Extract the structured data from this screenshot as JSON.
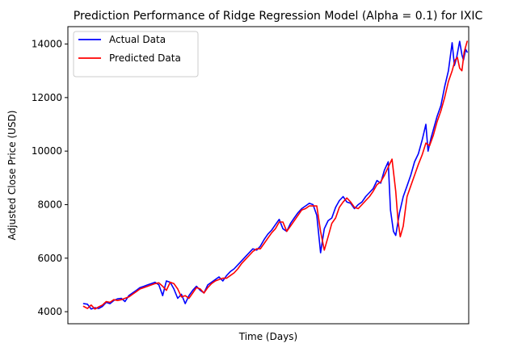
{
  "chart_data": {
    "type": "line",
    "title": "Prediction Performance of Ridge Regression Model (Alpha = 0.1) for IXIC",
    "xlabel": "Time (Days)",
    "ylabel": "Adjusted Close Price (USD)",
    "ylim": [
      3550,
      14650
    ],
    "yticks": [
      4000,
      6000,
      8000,
      10000,
      12000,
      14000
    ],
    "x_ticks_visible": false,
    "grid": false,
    "legend_position": "top-left",
    "xlim": [
      -21,
      512
    ],
    "series": [
      {
        "name": "Actual Data",
        "color": "#0000ff",
        "points": [
          [
            0,
            4300
          ],
          [
            5,
            4280
          ],
          [
            10,
            4100
          ],
          [
            15,
            4150
          ],
          [
            20,
            4120
          ],
          [
            25,
            4200
          ],
          [
            30,
            4350
          ],
          [
            35,
            4300
          ],
          [
            40,
            4420
          ],
          [
            45,
            4480
          ],
          [
            50,
            4500
          ],
          [
            55,
            4380
          ],
          [
            60,
            4600
          ],
          [
            65,
            4700
          ],
          [
            70,
            4800
          ],
          [
            75,
            4900
          ],
          [
            80,
            4950
          ],
          [
            85,
            5000
          ],
          [
            90,
            5050
          ],
          [
            95,
            5100
          ],
          [
            100,
            5000
          ],
          [
            105,
            4600
          ],
          [
            110,
            5150
          ],
          [
            115,
            5100
          ],
          [
            120,
            4850
          ],
          [
            125,
            4500
          ],
          [
            130,
            4650
          ],
          [
            135,
            4300
          ],
          [
            140,
            4600
          ],
          [
            145,
            4800
          ],
          [
            150,
            4950
          ],
          [
            155,
            4800
          ],
          [
            160,
            4700
          ],
          [
            165,
            5000
          ],
          [
            170,
            5100
          ],
          [
            175,
            5200
          ],
          [
            180,
            5300
          ],
          [
            185,
            5150
          ],
          [
            190,
            5350
          ],
          [
            195,
            5500
          ],
          [
            200,
            5600
          ],
          [
            205,
            5750
          ],
          [
            210,
            5900
          ],
          [
            215,
            6050
          ],
          [
            220,
            6200
          ],
          [
            225,
            6350
          ],
          [
            230,
            6300
          ],
          [
            235,
            6450
          ],
          [
            240,
            6700
          ],
          [
            245,
            6900
          ],
          [
            250,
            7050
          ],
          [
            255,
            7250
          ],
          [
            260,
            7450
          ],
          [
            265,
            7100
          ],
          [
            270,
            7000
          ],
          [
            275,
            7300
          ],
          [
            280,
            7500
          ],
          [
            285,
            7700
          ],
          [
            290,
            7850
          ],
          [
            295,
            7950
          ],
          [
            300,
            8050
          ],
          [
            305,
            8000
          ],
          [
            310,
            7600
          ],
          [
            315,
            6200
          ],
          [
            320,
            7100
          ],
          [
            325,
            7400
          ],
          [
            330,
            7500
          ],
          [
            335,
            7900
          ],
          [
            340,
            8150
          ],
          [
            345,
            8300
          ],
          [
            350,
            8100
          ],
          [
            355,
            8050
          ],
          [
            360,
            7850
          ],
          [
            365,
            8000
          ],
          [
            370,
            8100
          ],
          [
            375,
            8300
          ],
          [
            380,
            8450
          ],
          [
            385,
            8600
          ],
          [
            390,
            8900
          ],
          [
            395,
            8800
          ],
          [
            400,
            9300
          ],
          [
            405,
            9600
          ],
          [
            408,
            7800
          ],
          [
            412,
            7000
          ],
          [
            415,
            6850
          ],
          [
            420,
            7700
          ],
          [
            425,
            8300
          ],
          [
            430,
            8700
          ],
          [
            435,
            9100
          ],
          [
            440,
            9600
          ],
          [
            445,
            9900
          ],
          [
            450,
            10400
          ],
          [
            455,
            11000
          ],
          [
            458,
            10000
          ],
          [
            462,
            10500
          ],
          [
            465,
            10800
          ],
          [
            470,
            11300
          ],
          [
            475,
            11700
          ],
          [
            480,
            12400
          ],
          [
            485,
            13000
          ],
          [
            490,
            14050
          ],
          [
            493,
            13200
          ],
          [
            496,
            13500
          ],
          [
            500,
            14100
          ],
          [
            503,
            13600
          ],
          [
            505,
            13400
          ],
          [
            508,
            13800
          ],
          [
            510,
            13700
          ]
        ]
      },
      {
        "name": "Predicted Data",
        "color": "#ff0000",
        "points": [
          [
            0,
            4200
          ],
          [
            5,
            4120
          ],
          [
            10,
            4250
          ],
          [
            15,
            4100
          ],
          [
            20,
            4180
          ],
          [
            25,
            4250
          ],
          [
            30,
            4380
          ],
          [
            35,
            4350
          ],
          [
            40,
            4450
          ],
          [
            45,
            4420
          ],
          [
            50,
            4450
          ],
          [
            55,
            4500
          ],
          [
            60,
            4550
          ],
          [
            65,
            4650
          ],
          [
            70,
            4750
          ],
          [
            75,
            4850
          ],
          [
            80,
            4900
          ],
          [
            85,
            4950
          ],
          [
            90,
            5000
          ],
          [
            95,
            5050
          ],
          [
            100,
            5080
          ],
          [
            105,
            4950
          ],
          [
            110,
            4800
          ],
          [
            115,
            5100
          ],
          [
            120,
            5050
          ],
          [
            125,
            4850
          ],
          [
            130,
            4550
          ],
          [
            135,
            4600
          ],
          [
            140,
            4500
          ],
          [
            145,
            4700
          ],
          [
            150,
            4900
          ],
          [
            155,
            4850
          ],
          [
            160,
            4700
          ],
          [
            165,
            4900
          ],
          [
            170,
            5050
          ],
          [
            175,
            5150
          ],
          [
            180,
            5200
          ],
          [
            185,
            5250
          ],
          [
            190,
            5250
          ],
          [
            195,
            5350
          ],
          [
            200,
            5450
          ],
          [
            205,
            5600
          ],
          [
            210,
            5800
          ],
          [
            215,
            5950
          ],
          [
            220,
            6100
          ],
          [
            225,
            6250
          ],
          [
            230,
            6350
          ],
          [
            235,
            6350
          ],
          [
            240,
            6550
          ],
          [
            245,
            6750
          ],
          [
            250,
            6950
          ],
          [
            255,
            7100
          ],
          [
            260,
            7350
          ],
          [
            265,
            7350
          ],
          [
            270,
            7000
          ],
          [
            275,
            7200
          ],
          [
            280,
            7400
          ],
          [
            285,
            7600
          ],
          [
            290,
            7800
          ],
          [
            295,
            7850
          ],
          [
            300,
            7950
          ],
          [
            305,
            7950
          ],
          [
            310,
            7950
          ],
          [
            315,
            7000
          ],
          [
            320,
            6300
          ],
          [
            325,
            6800
          ],
          [
            330,
            7300
          ],
          [
            335,
            7500
          ],
          [
            340,
            7900
          ],
          [
            345,
            8100
          ],
          [
            350,
            8250
          ],
          [
            355,
            8100
          ],
          [
            360,
            7900
          ],
          [
            365,
            7850
          ],
          [
            370,
            8000
          ],
          [
            375,
            8150
          ],
          [
            380,
            8300
          ],
          [
            385,
            8500
          ],
          [
            390,
            8750
          ],
          [
            395,
            8850
          ],
          [
            400,
            9100
          ],
          [
            405,
            9400
          ],
          [
            410,
            9700
          ],
          [
            415,
            8500
          ],
          [
            418,
            7400
          ],
          [
            421,
            6800
          ],
          [
            425,
            7200
          ],
          [
            430,
            8300
          ],
          [
            435,
            8700
          ],
          [
            440,
            9100
          ],
          [
            445,
            9500
          ],
          [
            450,
            9850
          ],
          [
            455,
            10300
          ],
          [
            460,
            10200
          ],
          [
            465,
            10600
          ],
          [
            470,
            11100
          ],
          [
            475,
            11500
          ],
          [
            480,
            12000
          ],
          [
            485,
            12600
          ],
          [
            490,
            13000
          ],
          [
            494,
            13400
          ],
          [
            497,
            13500
          ],
          [
            500,
            13100
          ],
          [
            503,
            13000
          ],
          [
            506,
            13700
          ],
          [
            510,
            14100
          ]
        ]
      }
    ]
  }
}
